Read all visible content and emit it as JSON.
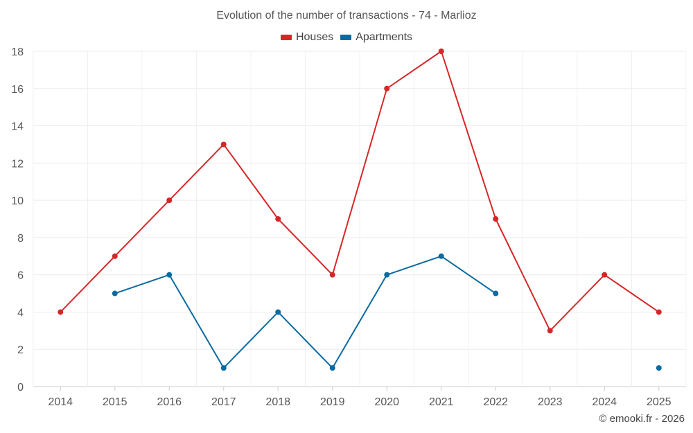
{
  "chart_data": {
    "type": "line",
    "title": "Evolution of the number of transactions - 74 - Marlioz",
    "categories": [
      "2014",
      "2015",
      "2016",
      "2017",
      "2018",
      "2019",
      "2020",
      "2021",
      "2022",
      "2023",
      "2024",
      "2025"
    ],
    "series": [
      {
        "name": "Houses",
        "color": "#d62728",
        "values": [
          4,
          7,
          10,
          13,
          9,
          6,
          16,
          18,
          9,
          3,
          6,
          4
        ]
      },
      {
        "name": "Apartments",
        "color": "#0a6aa1",
        "values": [
          null,
          5,
          6,
          1,
          4,
          1,
          6,
          7,
          5,
          null,
          null,
          1
        ]
      }
    ],
    "yticks": [
      0,
      2,
      4,
      6,
      8,
      10,
      12,
      14,
      16,
      18
    ],
    "ylim": [
      0,
      18
    ],
    "xlabel": "",
    "ylabel": "",
    "grid": true,
    "legend": "top-center"
  },
  "credit": "© emooki.fr - 2026"
}
